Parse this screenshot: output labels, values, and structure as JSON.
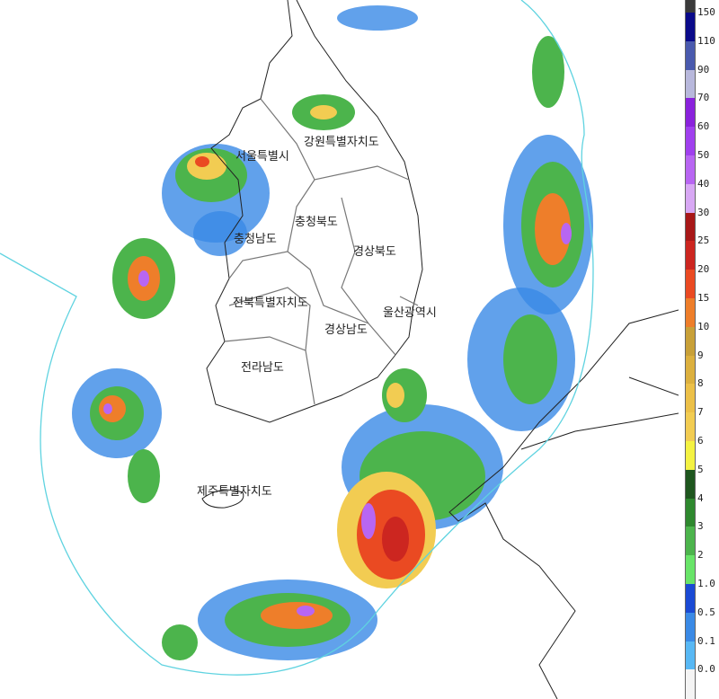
{
  "map": {
    "regions": [
      {
        "name": "강원특별자치도"
      },
      {
        "name": "서울특별시"
      },
      {
        "name": "충청북도"
      },
      {
        "name": "충청남도"
      },
      {
        "name": "경상북도"
      },
      {
        "name": "전북특별자치도"
      },
      {
        "name": "울산광역시"
      },
      {
        "name": "경상남도"
      },
      {
        "name": "전라남도"
      },
      {
        "name": "제주특별자치도"
      }
    ],
    "coverage_color": "#5fd3e0"
  },
  "legend": {
    "labels": [
      "150",
      "110",
      "90",
      "70",
      "60",
      "50",
      "40",
      "30",
      "25",
      "20",
      "15",
      "10",
      "9",
      "8",
      "7",
      "6",
      "5",
      "4",
      "3",
      "2",
      "1.0",
      "0.5",
      "0.1",
      "0.0"
    ],
    "colors": [
      "#3a3a3a",
      "#0a0a8a",
      "#4a5aae",
      "#b8b8dc",
      "#8a22dc",
      "#a040ee",
      "#b866f2",
      "#d8a8f4",
      "#a81818",
      "#cc2620",
      "#ea4a22",
      "#ee7e2a",
      "#c8a038",
      "#dcb03e",
      "#ecc048",
      "#f2cc52",
      "#f4f242",
      "#1e561e",
      "#2e882e",
      "#4cb44c",
      "#68e468",
      "#1a4ad4",
      "#3a8ae6",
      "#58b8f4",
      "#f4f4f4"
    ]
  }
}
